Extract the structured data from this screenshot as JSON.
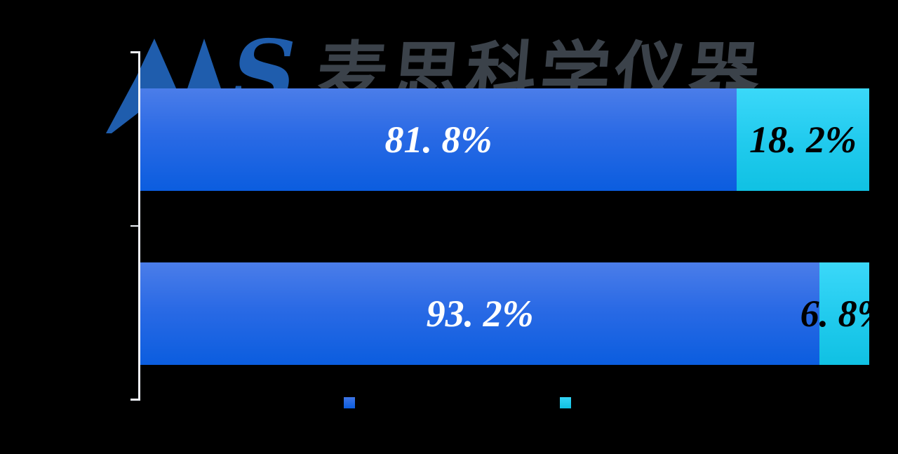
{
  "background_color": "#000000",
  "logo": {
    "wordmark": "AAS",
    "wordmark_s_glyph": "S",
    "wordmark_color": "#1f5dad",
    "company_name_cn": "麦思科学仪器",
    "company_name_color": "#3b424a"
  },
  "axis": {
    "color": "#eef1f7",
    "tick_count": 3
  },
  "chart_data": {
    "type": "bar",
    "orientation": "horizontal",
    "stacked": true,
    "unit": "%",
    "xlim": [
      0,
      100
    ],
    "grid": false,
    "legend_position": "bottom",
    "legend_text_visible": false,
    "series": [
      {
        "name": "blue",
        "color_top": "#4b7de9",
        "color_bottom": "#0b5ddf",
        "values": [
          81.8,
          93.2
        ]
      },
      {
        "name": "cyan",
        "color_top": "#3bd8f9",
        "color_bottom": "#10c1e3",
        "values": [
          18.2,
          6.8
        ]
      }
    ],
    "rows": [
      {
        "segments": [
          {
            "series": "blue",
            "value": 81.8,
            "label": "81. 8%",
            "label_color": "#ffffff"
          },
          {
            "series": "cyan",
            "value": 18.2,
            "label": "18. 2%",
            "label_color": "#000000"
          }
        ]
      },
      {
        "segments": [
          {
            "series": "blue",
            "value": 93.2,
            "label": "93. 2%",
            "label_color": "#ffffff"
          },
          {
            "series": "cyan",
            "value": 6.8,
            "label": "6. 8%",
            "label_color": "#000000"
          }
        ]
      }
    ]
  }
}
